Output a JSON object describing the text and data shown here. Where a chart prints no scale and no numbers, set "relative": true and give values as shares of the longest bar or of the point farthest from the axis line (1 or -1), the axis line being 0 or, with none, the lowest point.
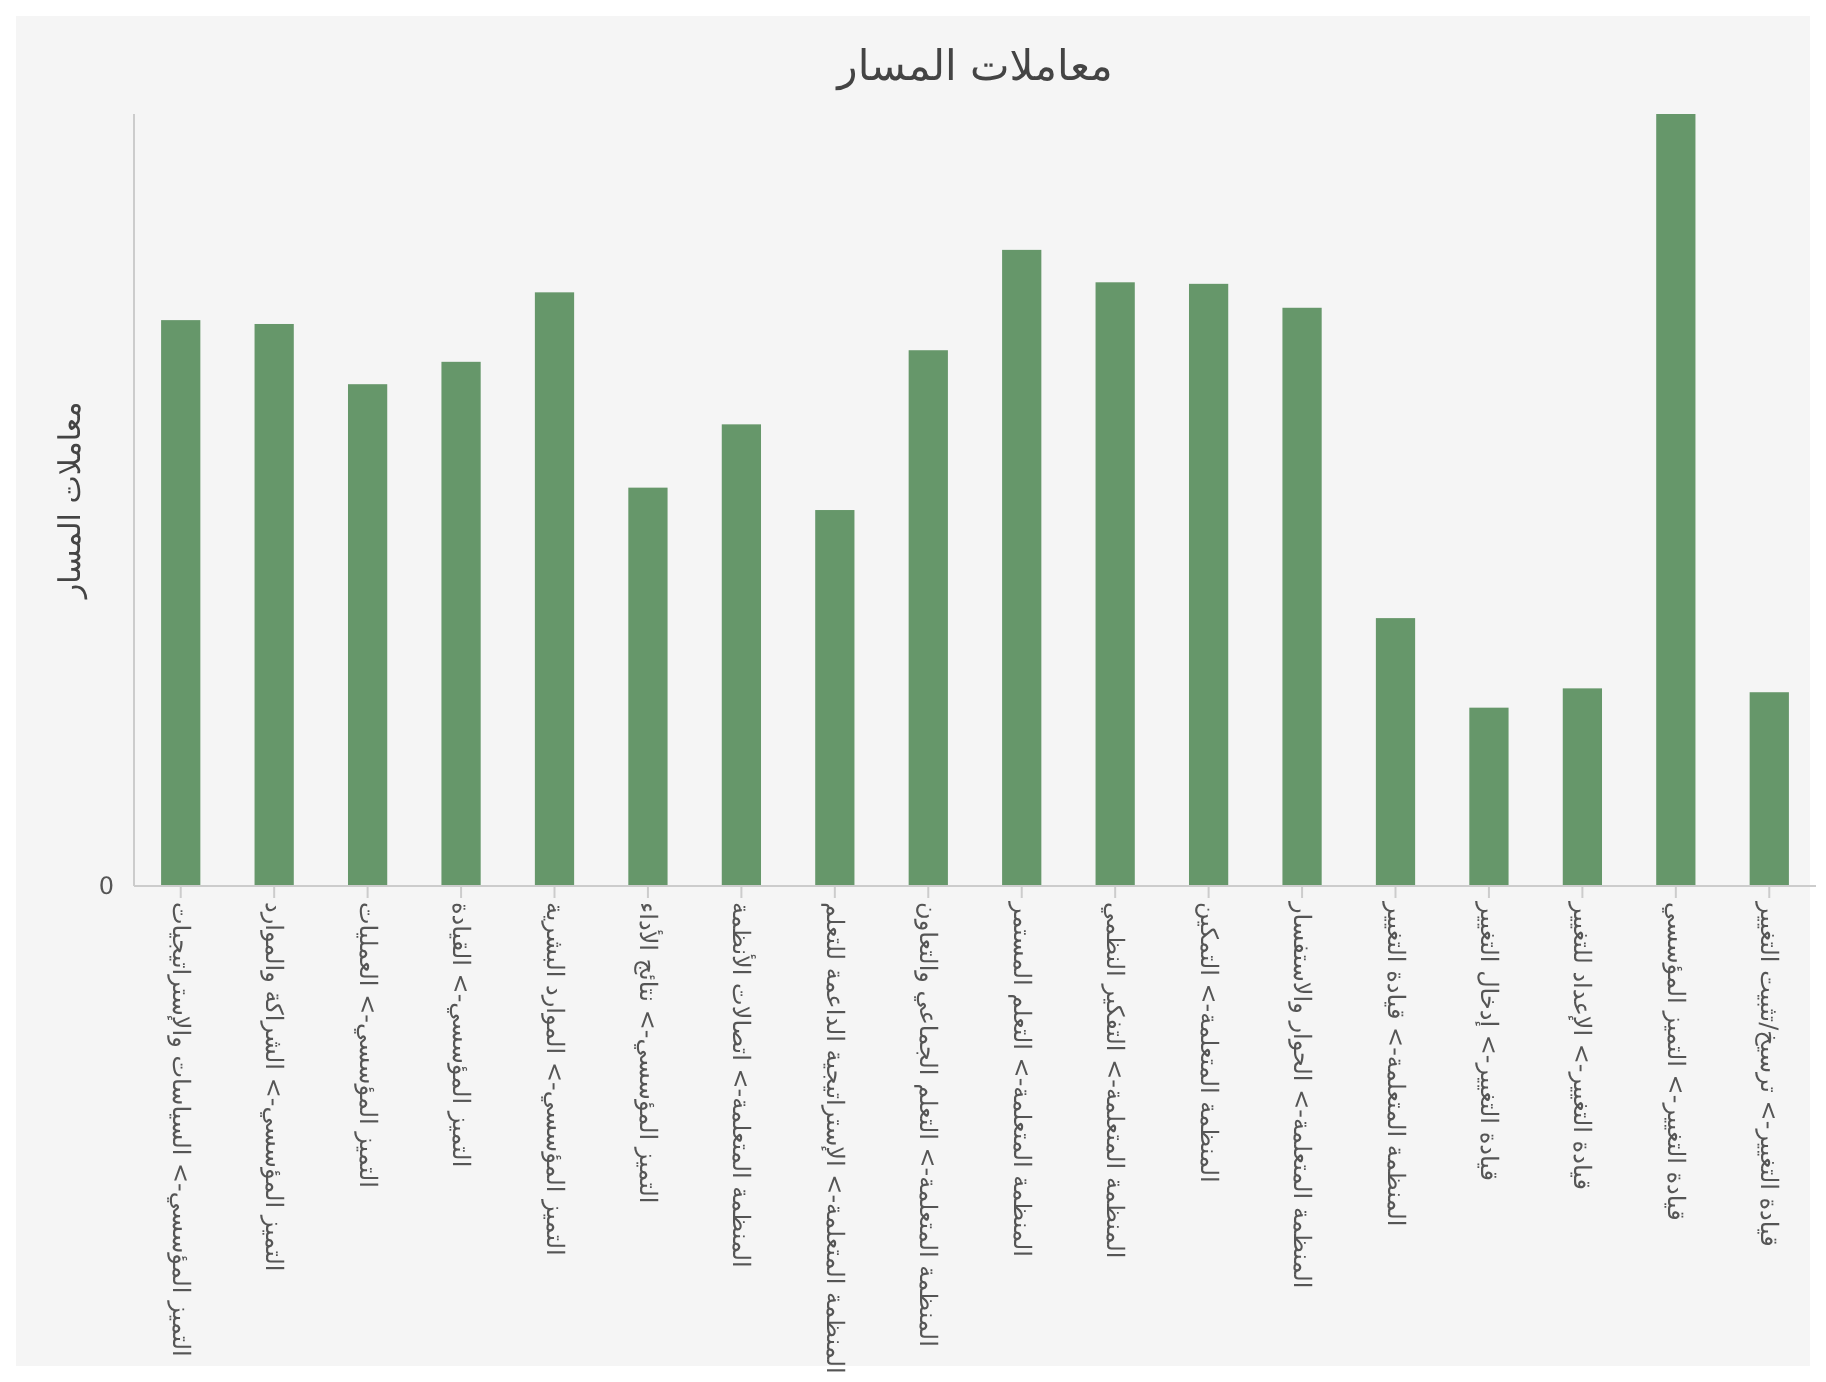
{
  "chart_data": {
    "type": "bar",
    "title": "معاملات المسار",
    "ylabel": "معاملات المسار",
    "relative": true,
    "color": "#66976a",
    "annotations": [
      "0"
    ],
    "categories": [
      "التميز المؤسسي-> السياسات والإستراتيجيات",
      "التميز المؤسسي-> الشراكة والموارد",
      "التميز المؤسسي-> العمليات",
      "التميز المؤسسي-> القيادة",
      "التميز المؤسسي-> الموارد البشرية",
      "التميز المؤسسي-> نتائج الأداء",
      "المنظمة المتعلمة-> اتصالات الأنظمة",
      "المنظمة المتعلمة-> الإستراتيجية الداعمة للتعلم",
      "المنظمة المتعلمة-> التعلم الجماعي والتعاون",
      "المنظمة المتعلمة-> التعلم المستمر",
      "المنظمة المتعلمة-> التفكير النظمي",
      "المنظمة المتعلمة-> التمكين",
      "المنظمة المتعلمة-> الحوار والاستفسار",
      "المنظمة المتعلمة-> قيادة التغيير",
      "قيادة التغيير-> إدخال التغيير",
      "قيادة التغيير-> الإعداد للتغيير",
      "قيادة التغيير-> التميز المؤسسي",
      "قيادة التغيير-> ترسيخ/تثبيت التغيير"
    ],
    "values": [
      0.733,
      0.728,
      0.65,
      0.679,
      0.769,
      0.516,
      0.598,
      0.487,
      0.694,
      0.824,
      0.782,
      0.78,
      0.749,
      0.347,
      0.231,
      0.256,
      1,
      0.251
    ]
  }
}
